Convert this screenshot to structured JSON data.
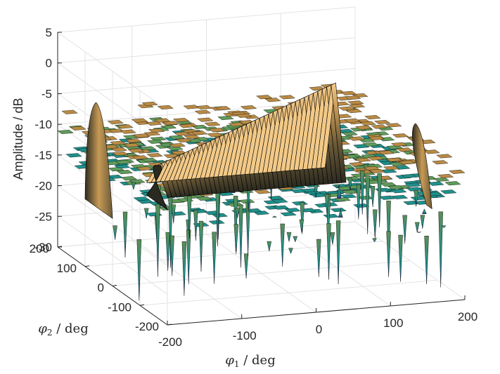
{
  "chart_data": {
    "type": "surface",
    "title": "",
    "xlabel": "φ1 / deg",
    "ylabel": "φ2 / deg",
    "zlabel": "Amplitude / dB",
    "xlabel_parts": {
      "symbol": "φ",
      "sub": "1",
      "rest": " / deg"
    },
    "ylabel_parts": {
      "symbol": "φ",
      "sub": "2",
      "rest": " / deg"
    },
    "x_ticks": [
      "-200",
      "-100",
      "0",
      "100",
      "200"
    ],
    "y_ticks": [
      "-200",
      "-100",
      "0",
      "100",
      "200"
    ],
    "z_ticks": [
      "5",
      "0",
      "-5",
      "-10",
      "-15",
      "-20",
      "-25",
      "-30"
    ],
    "xlim": [
      -200,
      200
    ],
    "ylim": [
      -200,
      200
    ],
    "zlim": [
      -30,
      5
    ],
    "grid": true,
    "colormap": "parula",
    "colors": {
      "low": "#2a3a8f",
      "mid_low": "#1f8f8a",
      "mid": "#5f9a5a",
      "mid_high": "#b88a44",
      "high": "#f2c987",
      "edge": "#000000"
    },
    "features": [
      {
        "name": "main ridge",
        "from": {
          "x": -140,
          "y": 0,
          "z": -11
        },
        "to": {
          "x": 100,
          "y": 0,
          "z": 0
        }
      },
      {
        "name": "end lobe",
        "x": 200,
        "y": -20,
        "z": -7
      },
      {
        "name": "end lobe",
        "x": -200,
        "y": 60,
        "z": -2
      },
      {
        "name": "sidelobe plateau",
        "from": -200,
        "to": 200,
        "z_range": [
          -15,
          -7
        ]
      }
    ]
  }
}
